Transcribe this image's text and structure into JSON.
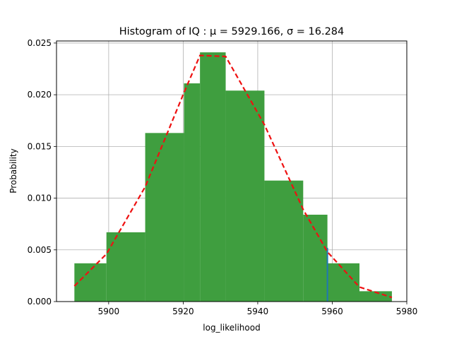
{
  "chart_data": {
    "type": "bar",
    "title": "Histogram of IQ :  μ = 5929.166,  σ = 16.284",
    "xlabel": "log_likelihood",
    "ylabel": "Probability",
    "xlim": [
      5886,
      5980
    ],
    "ylim": [
      0,
      0.0252
    ],
    "xticks": [
      5900,
      5920,
      5940,
      5960,
      5980
    ],
    "yticks": [
      0.0,
      0.005,
      0.01,
      0.015,
      0.02,
      0.025
    ],
    "ytick_labels": [
      "0.000",
      "0.005",
      "0.010",
      "0.015",
      "0.020",
      "0.025"
    ],
    "grid": true,
    "bins": [
      {
        "x0": 5890.8,
        "x1": 5899.4,
        "value": 0.0037
      },
      {
        "x0": 5899.4,
        "x1": 5909.8,
        "value": 0.0067
      },
      {
        "x0": 5909.8,
        "x1": 5920.2,
        "value": 0.0163
      },
      {
        "x0": 5920.2,
        "x1": 5924.5,
        "value": 0.0211
      },
      {
        "x0": 5924.5,
        "x1": 5931.4,
        "value": 0.0241
      },
      {
        "x0": 5931.4,
        "x1": 5941.8,
        "value": 0.0204
      },
      {
        "x0": 5941.8,
        "x1": 5952.2,
        "value": 0.0117
      },
      {
        "x0": 5952.2,
        "x1": 5958.7,
        "value": 0.0084
      },
      {
        "x0": 5958.7,
        "x1": 5967.3,
        "value": 0.0037
      },
      {
        "x0": 5967.3,
        "x1": 5976.0,
        "value": 0.001
      }
    ],
    "fit_curve": {
      "x": [
        5890.8,
        5899.4,
        5909.8,
        5920.2,
        5924.5,
        5931.4,
        5941.8,
        5952.2,
        5958.7,
        5967.3,
        5976.0
      ],
      "y": [
        0.0015,
        0.0046,
        0.0111,
        0.0202,
        0.0238,
        0.0237,
        0.0171,
        0.0089,
        0.0048,
        0.0014,
        0.0004
      ]
    },
    "vline": {
      "x": 5958.7,
      "y": 0.0052
    },
    "colors": {
      "bars": "#3f9e3f",
      "curve": "#ee1111",
      "vline": "#1f77b4",
      "grid": "#b0b0b0"
    }
  }
}
